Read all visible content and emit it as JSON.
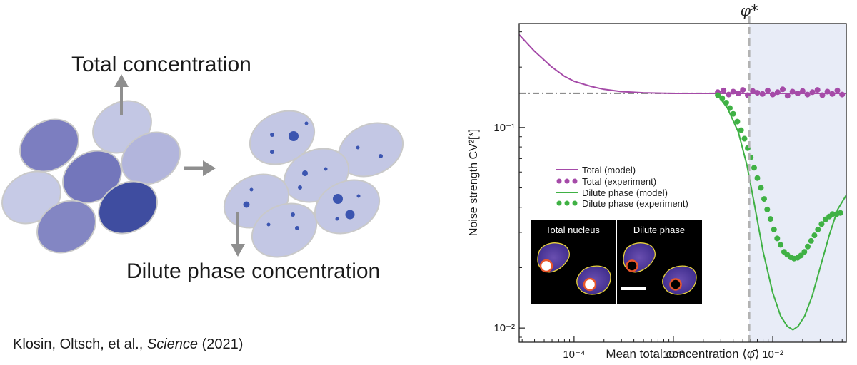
{
  "diagram": {
    "total_label": "Total concentration",
    "dilute_label": "Dilute phase concentration"
  },
  "citation": {
    "authors": "Klosin, Oltsch, et al., ",
    "journal": "Science",
    "year": " (2021)"
  },
  "colors": {
    "total": "#a54aa8",
    "dilute": "#3fb144",
    "cell_light": "#c3c7e4",
    "droplet": "#3b55b0",
    "shade": "#e8ecf7"
  },
  "chart_data": {
    "type": "line",
    "xscale": "log",
    "yscale": "log",
    "xlim": [
      2.8e-05,
      0.055
    ],
    "ylim": [
      0.0085,
      0.33
    ],
    "xlabel": "Mean total concentration ⟨φ̄⟩",
    "ylabel": "Noise strength  CV²[*]",
    "xticks": [
      {
        "value": 0.0001,
        "label": "10⁻⁴"
      },
      {
        "value": 0.001,
        "label": "10⁻³"
      },
      {
        "value": 0.01,
        "label": "10⁻²"
      }
    ],
    "yticks": [
      {
        "value": 0.1,
        "label": "10⁻¹"
      },
      {
        "value": 0.01,
        "label": "10⁻²"
      }
    ],
    "threshold": {
      "value": 0.0058,
      "label": "φ*"
    },
    "baseline": 0.148,
    "legend_placement": "lower-left",
    "series": [
      {
        "name": "Total (model)",
        "style": "line",
        "color": "#a54aa8",
        "x": [
          2.8e-05,
          4e-05,
          6e-05,
          8e-05,
          0.0001,
          0.00015,
          0.0002,
          0.0003,
          0.0005,
          0.001,
          0.003,
          0.01,
          0.055
        ],
        "y": [
          0.29,
          0.24,
          0.2,
          0.18,
          0.17,
          0.16,
          0.155,
          0.151,
          0.149,
          0.148,
          0.148,
          0.148,
          0.148
        ]
      },
      {
        "name": "Total (experiment)",
        "style": "dots",
        "color": "#a54aa8",
        "x": [
          0.0028,
          0.0032,
          0.0036,
          0.004,
          0.0045,
          0.005,
          0.0056,
          0.0063,
          0.007,
          0.0079,
          0.0089,
          0.01,
          0.0112,
          0.0126,
          0.0141,
          0.0158,
          0.0178,
          0.02,
          0.0224,
          0.0251,
          0.0282,
          0.0316,
          0.0355,
          0.0398,
          0.0447,
          0.05
        ],
        "y": [
          0.15,
          0.153,
          0.146,
          0.151,
          0.148,
          0.154,
          0.145,
          0.152,
          0.149,
          0.147,
          0.153,
          0.146,
          0.15,
          0.155,
          0.144,
          0.151,
          0.148,
          0.152,
          0.146,
          0.15,
          0.154,
          0.145,
          0.151,
          0.147,
          0.153,
          0.146
        ]
      },
      {
        "name": "Dilute phase (model)",
        "style": "line",
        "color": "#3fb144",
        "x": [
          0.0028,
          0.0035,
          0.0045,
          0.0055,
          0.0065,
          0.008,
          0.01,
          0.012,
          0.014,
          0.016,
          0.018,
          0.021,
          0.025,
          0.03,
          0.037,
          0.045,
          0.055
        ],
        "y": [
          0.145,
          0.125,
          0.095,
          0.065,
          0.042,
          0.024,
          0.015,
          0.0115,
          0.0102,
          0.0098,
          0.0102,
          0.0115,
          0.0145,
          0.02,
          0.029,
          0.039,
          0.046
        ]
      },
      {
        "name": "Dilute phase (experiment)",
        "style": "dots",
        "color": "#3fb144",
        "x": [
          0.0028,
          0.0031,
          0.0034,
          0.0037,
          0.004,
          0.0044,
          0.0048,
          0.0052,
          0.0056,
          0.006,
          0.0065,
          0.007,
          0.0076,
          0.0082,
          0.0088,
          0.0095,
          0.0103,
          0.0111,
          0.012,
          0.013,
          0.014,
          0.0152,
          0.0164,
          0.0178,
          0.0192,
          0.0208,
          0.0225,
          0.0243,
          0.0263,
          0.0285,
          0.031,
          0.034,
          0.037,
          0.04,
          0.044,
          0.048
        ],
        "y": [
          0.145,
          0.14,
          0.133,
          0.125,
          0.117,
          0.107,
          0.097,
          0.088,
          0.079,
          0.071,
          0.063,
          0.056,
          0.05,
          0.044,
          0.039,
          0.035,
          0.031,
          0.028,
          0.026,
          0.024,
          0.0232,
          0.0225,
          0.0222,
          0.0224,
          0.023,
          0.024,
          0.0255,
          0.0272,
          0.029,
          0.031,
          0.033,
          0.0348,
          0.036,
          0.037,
          0.037,
          0.0375
        ]
      }
    ],
    "inset": {
      "left_title": "Total nucleus",
      "right_title": "Dilute phase"
    }
  }
}
